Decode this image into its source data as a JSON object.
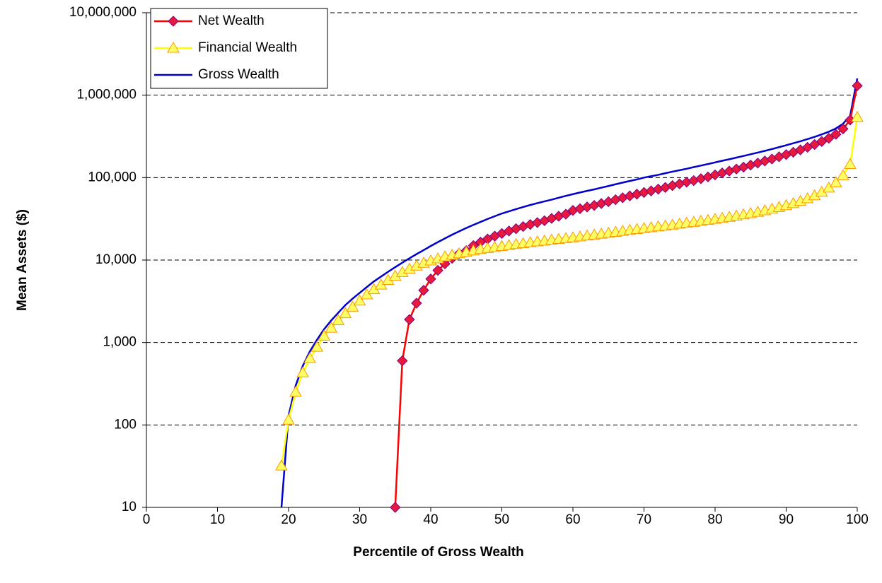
{
  "chart_data": {
    "type": "line",
    "x_label": "Percentile of Gross Wealth",
    "y_label": "Mean Assets ($)",
    "log_y": true,
    "grid": true,
    "legend": "top-left",
    "x": [
      19,
      20,
      21,
      22,
      23,
      24,
      25,
      26,
      27,
      28,
      29,
      30,
      31,
      32,
      33,
      34,
      35,
      36,
      37,
      38,
      39,
      40,
      41,
      42,
      43,
      44,
      45,
      46,
      47,
      48,
      49,
      50,
      51,
      52,
      53,
      54,
      55,
      56,
      57,
      58,
      59,
      60,
      61,
      62,
      63,
      64,
      65,
      66,
      67,
      68,
      69,
      70,
      71,
      72,
      73,
      74,
      75,
      76,
      77,
      78,
      79,
      80,
      81,
      82,
      83,
      84,
      85,
      86,
      87,
      88,
      89,
      90,
      91,
      92,
      93,
      94,
      95,
      96,
      97,
      98,
      99,
      100
    ],
    "xlim": [
      0,
      100
    ],
    "xticks": [
      0,
      10,
      20,
      30,
      40,
      50,
      60,
      70,
      80,
      90,
      100
    ],
    "ylim": [
      10,
      10000000
    ],
    "yticks": [
      10,
      100,
      {
        "value": 1000,
        "label": "1,000"
      },
      {
        "value": 10000,
        "label": "10,000"
      },
      {
        "value": 100000,
        "label": "100,000"
      },
      {
        "value": 1000000,
        "label": "1,000,000"
      },
      {
        "value": 10000000,
        "label": "10,000,000"
      }
    ],
    "series": [
      {
        "name": "Net Wealth",
        "color": "#ff0000",
        "marker": "diamond",
        "marker_color": "#e8193c",
        "marker_edge": "#800080",
        "values": [
          null,
          null,
          null,
          null,
          null,
          null,
          null,
          null,
          null,
          null,
          null,
          null,
          null,
          null,
          null,
          null,
          10,
          600,
          1900,
          3000,
          4300,
          5900,
          7500,
          9000,
          10500,
          12000,
          13000,
          15000,
          16500,
          18000,
          19500,
          21000,
          22500,
          24000,
          25500,
          27000,
          28500,
          30000,
          32000,
          34000,
          36000,
          40000,
          42000,
          44000,
          46000,
          48500,
          51000,
          54000,
          57000,
          60000,
          63000,
          66000,
          69000,
          72500,
          76000,
          80000,
          84000,
          88000,
          92000,
          97000,
          102000,
          108000,
          114000,
          120000,
          127000,
          134000,
          142000,
          150000,
          159000,
          168000,
          179000,
          190000,
          203000,
          217000,
          233000,
          252000,
          274000,
          300000,
          335000,
          390000,
          500000,
          1300000
        ]
      },
      {
        "name": "Financial Wealth",
        "color": "#ffff00",
        "marker": "triangle",
        "marker_color": "#ffff66",
        "marker_edge": "#ff9900",
        "values": [
          32,
          115,
          250,
          430,
          640,
          880,
          1200,
          1500,
          1850,
          2250,
          2700,
          3200,
          3800,
          4400,
          5000,
          5700,
          6400,
          7100,
          7800,
          8500,
          9200,
          9800,
          10400,
          11000,
          11500,
          12000,
          12500,
          13000,
          13500,
          13900,
          14300,
          14700,
          15100,
          15500,
          15900,
          16300,
          16700,
          17100,
          17500,
          17900,
          18300,
          18700,
          19200,
          19700,
          20200,
          20700,
          21200,
          21800,
          22400,
          23000,
          23600,
          24200,
          24800,
          25400,
          26000,
          26700,
          27400,
          28100,
          28800,
          29600,
          30400,
          31300,
          32200,
          33200,
          34300,
          35500,
          36800,
          38200,
          39800,
          41600,
          43600,
          45900,
          48600,
          51800,
          55700,
          60500,
          66800,
          75000,
          87000,
          106000,
          145000,
          540000
        ]
      },
      {
        "name": "Gross Wealth",
        "color": "#0000cc",
        "marker": "none",
        "values": [
          10,
          130,
          300,
          520,
          780,
          1080,
          1450,
          1850,
          2300,
          2850,
          3400,
          4000,
          4700,
          5500,
          6300,
          7200,
          8200,
          9300,
          10500,
          11800,
          13200,
          14800,
          16500,
          18300,
          20300,
          22300,
          24500,
          26700,
          29000,
          31500,
          34000,
          36700,
          39000,
          41500,
          44000,
          46500,
          49000,
          51500,
          54000,
          57000,
          60000,
          63000,
          66000,
          69000,
          72000,
          75500,
          79000,
          83000,
          87000,
          91000,
          95000,
          100000,
          104000,
          108000,
          113000,
          118000,
          123000,
          128000,
          134000,
          140000,
          146000,
          153000,
          160000,
          167000,
          175000,
          183000,
          192000,
          201000,
          211000,
          222000,
          234000,
          247000,
          261000,
          276000,
          293000,
          312000,
          334000,
          360000,
          395000,
          450000,
          560000,
          1600000
        ]
      }
    ]
  }
}
